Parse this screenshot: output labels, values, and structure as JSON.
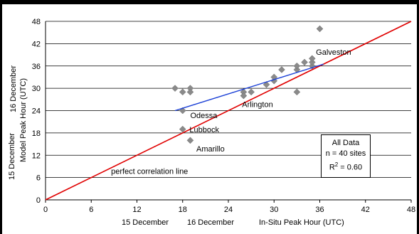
{
  "chart_data": {
    "type": "scatter",
    "xlim": [
      0,
      48
    ],
    "ylim": [
      0,
      48
    ],
    "x_ticks": [
      "0",
      "6",
      "12",
      "18",
      "24",
      "30",
      "36",
      "42",
      "48"
    ],
    "y_ticks": [
      "0",
      "6",
      "12",
      "18",
      "24",
      "30",
      "36",
      "42",
      "48"
    ],
    "grid": "horizontal",
    "x_axis_labels": [
      "15 December",
      "16 December",
      "In-Situ Peak Hour (UTC)"
    ],
    "y_axis_labels": [
      "15 December",
      "16 December",
      "Model Peak Hour (UTC)"
    ],
    "points": [
      {
        "x": 17,
        "y": 30
      },
      {
        "x": 18,
        "y": 29
      },
      {
        "x": 19,
        "y": 30
      },
      {
        "x": 19,
        "y": 29
      },
      {
        "x": 18,
        "y": 24
      },
      {
        "x": 18,
        "y": 19
      },
      {
        "x": 19,
        "y": 16
      },
      {
        "x": 26,
        "y": 29
      },
      {
        "x": 26,
        "y": 28
      },
      {
        "x": 27,
        "y": 29
      },
      {
        "x": 29,
        "y": 31
      },
      {
        "x": 30,
        "y": 32
      },
      {
        "x": 30,
        "y": 33
      },
      {
        "x": 31,
        "y": 35
      },
      {
        "x": 33,
        "y": 35
      },
      {
        "x": 33,
        "y": 36
      },
      {
        "x": 33,
        "y": 29
      },
      {
        "x": 34,
        "y": 37
      },
      {
        "x": 35,
        "y": 36
      },
      {
        "x": 35,
        "y": 37
      },
      {
        "x": 35,
        "y": 38
      },
      {
        "x": 36,
        "y": 46
      }
    ],
    "perfect_correlation_line": {
      "x": [
        0,
        48
      ],
      "y": [
        0,
        48
      ]
    },
    "regression_line": {
      "x": [
        17,
        36.5
      ],
      "y": [
        24,
        36.5
      ]
    },
    "annotations": [
      {
        "text": "Galveston",
        "x": 35.5,
        "y": 39
      },
      {
        "text": "Arlington",
        "x": 25.8,
        "y": 25
      },
      {
        "text": "Odessa",
        "x": 19,
        "y": 22
      },
      {
        "text": "Lubbock",
        "x": 18.9,
        "y": 18.2
      },
      {
        "text": "Amarillo",
        "x": 19.8,
        "y": 13
      },
      {
        "text": "perfect correlation line",
        "x": 8.6,
        "y": 7
      }
    ],
    "stats": {
      "line1": "All Data",
      "line2": "n = 40 sites",
      "r2_base": "R",
      "r2_exp": "2",
      "r2_val": " = 0.60"
    },
    "colors": {
      "perfect_line": "#e00000",
      "regression_line": "#1a3fd6",
      "marker": "#8a8a8a",
      "grid": "#000000"
    }
  }
}
